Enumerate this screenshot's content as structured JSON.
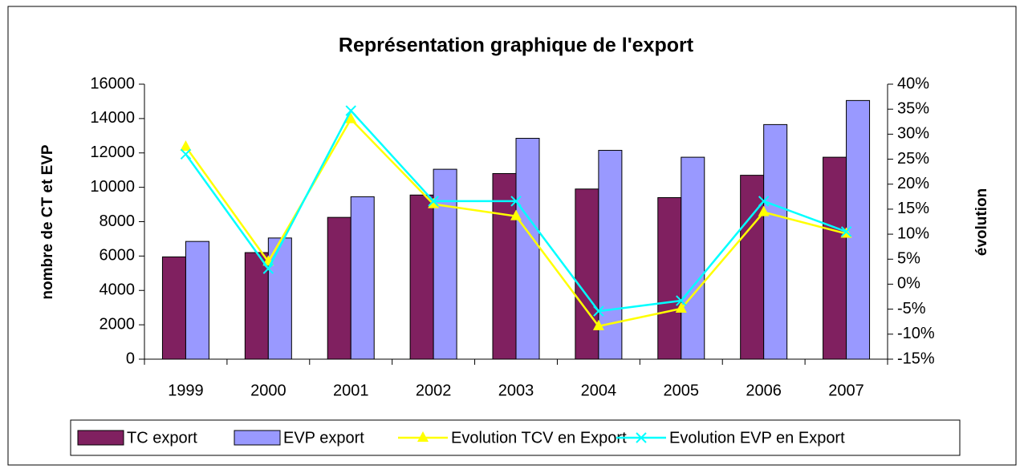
{
  "chart_data": {
    "type": "bar",
    "title": "Représentation graphique de l'export",
    "y_label": "nombre de CT et EVP",
    "y2_label": "évolution",
    "categories": [
      "1999",
      "2000",
      "2001",
      "2002",
      "2003",
      "2004",
      "2005",
      "2006",
      "2007"
    ],
    "series": [
      {
        "name": "TC export",
        "type": "bar",
        "color": "#802060",
        "values": [
          5950,
          6200,
          8250,
          9550,
          10800,
          9900,
          9400,
          10700,
          11750
        ]
      },
      {
        "name": "EVP export",
        "type": "bar",
        "color": "#9999ff",
        "values": [
          6850,
          7050,
          9450,
          11050,
          12850,
          12150,
          11750,
          13650,
          15050
        ]
      },
      {
        "name": "Evolution TCV en Export",
        "type": "line",
        "axis": "y2",
        "marker": "triangle",
        "color": "#ffff00",
        "values": [
          27.5,
          4.5,
          33,
          16,
          13.6,
          -8.4,
          -4.9,
          14.4,
          10.1
        ]
      },
      {
        "name": "Evolution EVP en Export",
        "type": "line",
        "axis": "y2",
        "marker": "x",
        "color": "#00ffff",
        "values": [
          26,
          3.1,
          34.7,
          16.6,
          16.6,
          -5.4,
          -3.3,
          16.6,
          10.5
        ]
      }
    ],
    "ylim": [
      0,
      16000
    ],
    "yticks": [
      0,
      2000,
      4000,
      6000,
      8000,
      10000,
      12000,
      14000,
      16000
    ],
    "y2lim": [
      -15,
      40
    ],
    "y2ticks": [
      {
        "value": -15,
        "label": "-15%"
      },
      {
        "value": -10,
        "label": "-10%"
      },
      {
        "value": -5,
        "label": "-5%"
      },
      {
        "value": 0,
        "label": "0%"
      },
      {
        "value": 5,
        "label": "5%"
      },
      {
        "value": 10,
        "label": "10%"
      },
      {
        "value": 15,
        "label": "15%"
      },
      {
        "value": 20,
        "label": "20%"
      },
      {
        "value": 25,
        "label": "25%"
      },
      {
        "value": 30,
        "label": "30%"
      },
      {
        "value": 35,
        "label": "35%"
      },
      {
        "value": 40,
        "label": "40%"
      }
    ],
    "legend": "bottom",
    "grid": false
  }
}
